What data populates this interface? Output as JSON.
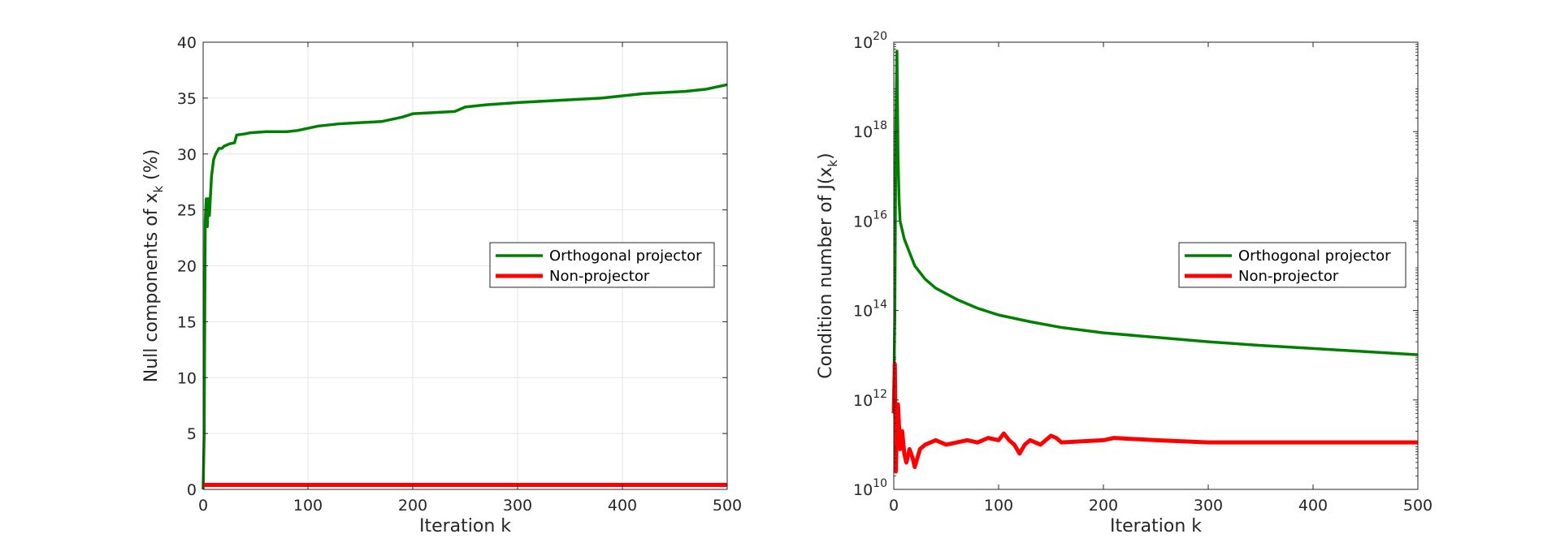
{
  "chart_data": [
    {
      "type": "line",
      "xlabel": "Iteration k",
      "ylabel": {
        "main": "Null components of x",
        "sub": "k",
        "suffix": " (%)"
      },
      "xlim": [
        0,
        500
      ],
      "ylim": [
        0,
        40
      ],
      "yscale": "linear",
      "grid": true,
      "x_ticks": [
        "0",
        "100",
        "200",
        "300",
        "400",
        "500"
      ],
      "y_ticks": [
        "0",
        "5",
        "10",
        "15",
        "20",
        "25",
        "30",
        "35",
        "40"
      ],
      "legend": {
        "placement": "right"
      },
      "series": [
        {
          "name": "Orthogonal projector",
          "color": "#008000",
          "x": [
            0,
            1,
            2,
            3,
            4,
            5,
            6,
            8,
            10,
            12,
            15,
            18,
            20,
            25,
            30,
            32,
            40,
            45,
            60,
            80,
            90,
            100,
            110,
            120,
            130,
            150,
            170,
            180,
            190,
            200,
            220,
            240,
            250,
            270,
            300,
            320,
            340,
            360,
            380,
            390,
            410,
            420,
            440,
            460,
            480,
            490,
            500
          ],
          "y": [
            0,
            5,
            24,
            26,
            23.5,
            26,
            24.5,
            28,
            29.5,
            30,
            30.5,
            30.5,
            30.7,
            30.9,
            31.0,
            31.7,
            31.8,
            31.9,
            32.0,
            32.0,
            32.1,
            32.3,
            32.5,
            32.6,
            32.7,
            32.8,
            32.9,
            33.1,
            33.3,
            33.6,
            33.7,
            33.8,
            34.2,
            34.4,
            34.6,
            34.7,
            34.8,
            34.9,
            35.0,
            35.1,
            35.3,
            35.4,
            35.5,
            35.6,
            35.8,
            36.0,
            36.2
          ]
        },
        {
          "name": "Non-projector",
          "color": "#ff0000",
          "x": [
            0,
            1,
            2,
            500
          ],
          "y": [
            0.4,
            0.4,
            0.4,
            0.4
          ]
        }
      ]
    },
    {
      "type": "line",
      "xlabel": "Iteration k",
      "ylabel": {
        "main": "Condition number of J(x",
        "sub": "k",
        "suffix": ")"
      },
      "xlim": [
        0,
        500
      ],
      "ylim": [
        10,
        20
      ],
      "yscale": "log",
      "grid": false,
      "x_ticks": [
        "0",
        "100",
        "200",
        "300",
        "400",
        "500"
      ],
      "y_ticks": [
        {
          "base": "10",
          "exp": "10"
        },
        {
          "base": "10",
          "exp": "12"
        },
        {
          "base": "10",
          "exp": "14"
        },
        {
          "base": "10",
          "exp": "16"
        },
        {
          "base": "10",
          "exp": "18"
        },
        {
          "base": "10",
          "exp": "20"
        }
      ],
      "legend": {
        "placement": "right"
      },
      "series": [
        {
          "name": "Orthogonal projector",
          "color": "#008000",
          "x": [
            0,
            1,
            2,
            3,
            4,
            5,
            6,
            8,
            10,
            15,
            20,
            30,
            40,
            60,
            80,
            100,
            130,
            160,
            200,
            250,
            300,
            350,
            400,
            450,
            500
          ],
          "y": [
            12,
            14,
            18.2,
            19.8,
            17.5,
            16.5,
            16.0,
            15.8,
            15.6,
            15.3,
            15.0,
            14.7,
            14.5,
            14.25,
            14.05,
            13.9,
            13.75,
            13.62,
            13.5,
            13.4,
            13.3,
            13.22,
            13.15,
            13.08,
            13.01
          ]
        },
        {
          "name": "Non-projector",
          "color": "#ff0000",
          "x": [
            0,
            1,
            2,
            3,
            4,
            5,
            6,
            8,
            10,
            12,
            15,
            18,
            20,
            25,
            30,
            40,
            50,
            60,
            70,
            80,
            90,
            100,
            105,
            110,
            115,
            120,
            125,
            130,
            140,
            150,
            155,
            160,
            200,
            210,
            250,
            300,
            350,
            400,
            450,
            500
          ],
          "y": [
            11.7,
            12.8,
            10.4,
            11.5,
            11.9,
            11.4,
            10.9,
            11.3,
            10.8,
            10.6,
            10.9,
            10.7,
            10.5,
            10.9,
            11.0,
            11.1,
            11.0,
            11.05,
            11.1,
            11.05,
            11.15,
            11.1,
            11.25,
            11.1,
            11.0,
            10.8,
            11.0,
            11.1,
            11.0,
            11.2,
            11.15,
            11.05,
            11.1,
            11.15,
            11.1,
            11.05,
            11.05,
            11.05,
            11.05,
            11.05
          ]
        }
      ]
    }
  ]
}
